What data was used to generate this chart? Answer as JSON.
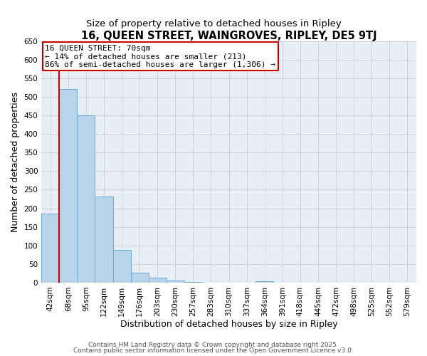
{
  "title": "16, QUEEN STREET, WAINGROVES, RIPLEY, DE5 9TJ",
  "subtitle": "Size of property relative to detached houses in Ripley",
  "xlabel": "Distribution of detached houses by size in Ripley",
  "ylabel": "Number of detached properties",
  "bin_labels": [
    "42sqm",
    "68sqm",
    "95sqm",
    "122sqm",
    "149sqm",
    "176sqm",
    "203sqm",
    "230sqm",
    "257sqm",
    "283sqm",
    "310sqm",
    "337sqm",
    "364sqm",
    "391sqm",
    "418sqm",
    "445sqm",
    "472sqm",
    "498sqm",
    "525sqm",
    "552sqm",
    "579sqm"
  ],
  "bar_heights": [
    185,
    520,
    450,
    232,
    88,
    27,
    13,
    5,
    2,
    0,
    0,
    0,
    4,
    0,
    0,
    0,
    0,
    0,
    0,
    0,
    0
  ],
  "bar_color": "#b8d4ea",
  "bar_edge_color": "#6aaad4",
  "grid_color": "#cccccc",
  "vline_color": "#cc0000",
  "annotation_title": "16 QUEEN STREET: 70sqm",
  "annotation_line1": "← 14% of detached houses are smaller (213)",
  "annotation_line2": "86% of semi-detached houses are larger (1,306) →",
  "annotation_box_color": "#ffffff",
  "annotation_box_edgecolor": "#cc0000",
  "ylim": [
    0,
    650
  ],
  "yticks": [
    0,
    50,
    100,
    150,
    200,
    250,
    300,
    350,
    400,
    450,
    500,
    550,
    600,
    650
  ],
  "footer1": "Contains HM Land Registry data © Crown copyright and database right 2025.",
  "footer2": "Contains public sector information licensed under the Open Government Licence v3.0.",
  "bg_color": "#ffffff",
  "plot_bg_color": "#e8eef5",
  "title_fontsize": 10.5,
  "subtitle_fontsize": 9.5,
  "axis_label_fontsize": 9,
  "tick_fontsize": 7.5,
  "annotation_fontsize": 8,
  "footer_fontsize": 6.5
}
